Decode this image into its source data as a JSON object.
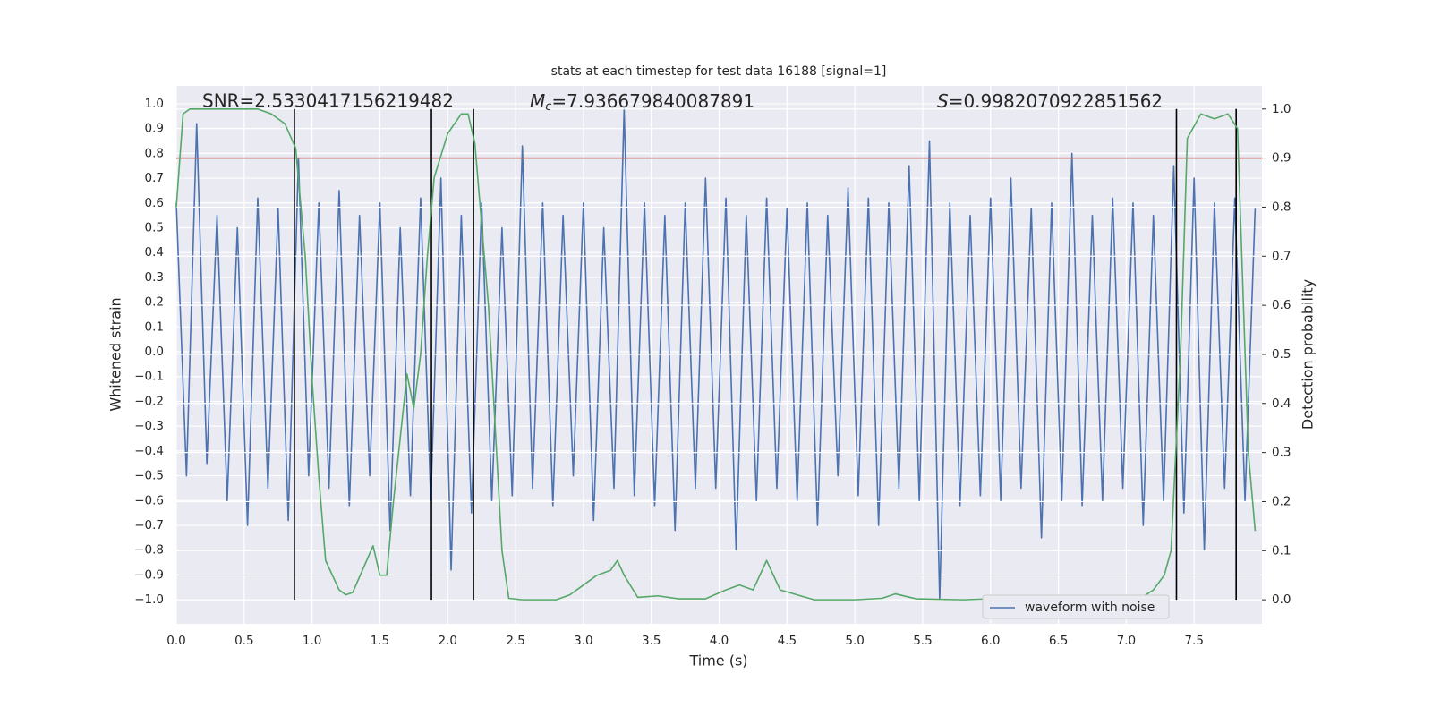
{
  "chart_data": {
    "type": "line",
    "title": "stats at each timestep for test data 16188 [signal=1]",
    "xlabel": "Time (s)",
    "ylabel": "Whitened strain",
    "y2label": "Detection probability",
    "annotations": [
      {
        "text": "SNR=2.5330417156219482"
      },
      {
        "symbol": "M",
        "subscript": "c",
        "text": "=7.936679840087891"
      },
      {
        "symbol": "S",
        "text": "=0.9982070922851562"
      }
    ],
    "xlim": [
      0,
      8.0
    ],
    "ylim": [
      -1.097,
      1.072
    ],
    "y2lim": [
      -0.049,
      1.047
    ],
    "xticks": [
      {
        "value": 0,
        "label": "0.0"
      },
      {
        "value": 0.5,
        "label": "0.5"
      },
      {
        "value": 1,
        "label": "1.0"
      },
      {
        "value": 1.5,
        "label": "1.5"
      },
      {
        "value": 2,
        "label": "2.0"
      },
      {
        "value": 2.5,
        "label": "2.5"
      },
      {
        "value": 3,
        "label": "3.0"
      },
      {
        "value": 3.5,
        "label": "3.5"
      },
      {
        "value": 4,
        "label": "4.0"
      },
      {
        "value": 4.5,
        "label": "4.5"
      },
      {
        "value": 5,
        "label": "5.0"
      },
      {
        "value": 5.5,
        "label": "5.5"
      },
      {
        "value": 6,
        "label": "6.0"
      },
      {
        "value": 6.5,
        "label": "6.5"
      },
      {
        "value": 7,
        "label": "7.0"
      },
      {
        "value": 7.5,
        "label": "7.5"
      }
    ],
    "yticks": [
      {
        "value": -1,
        "label": "−1.0"
      },
      {
        "value": -0.9,
        "label": "−0.9"
      },
      {
        "value": -0.8,
        "label": "−0.8"
      },
      {
        "value": -0.7,
        "label": "−0.7"
      },
      {
        "value": -0.6,
        "label": "−0.6"
      },
      {
        "value": -0.5,
        "label": "−0.5"
      },
      {
        "value": -0.4,
        "label": "−0.4"
      },
      {
        "value": -0.3,
        "label": "−0.3"
      },
      {
        "value": -0.2,
        "label": "−0.2"
      },
      {
        "value": -0.1,
        "label": "−0.1"
      },
      {
        "value": 0,
        "label": "0.0"
      },
      {
        "value": 0.1,
        "label": "0.1"
      },
      {
        "value": 0.2,
        "label": "0.2"
      },
      {
        "value": 0.3,
        "label": "0.3"
      },
      {
        "value": 0.4,
        "label": "0.4"
      },
      {
        "value": 0.5,
        "label": "0.5"
      },
      {
        "value": 0.6,
        "label": "0.6"
      },
      {
        "value": 0.7,
        "label": "0.7"
      },
      {
        "value": 0.8,
        "label": "0.8"
      },
      {
        "value": 0.9,
        "label": "0.9"
      },
      {
        "value": 1,
        "label": "1.0"
      }
    ],
    "y2ticks": [
      {
        "value": 0,
        "label": "0.0"
      },
      {
        "value": 0.1,
        "label": "0.1"
      },
      {
        "value": 0.2,
        "label": "0.2"
      },
      {
        "value": 0.3,
        "label": "0.3"
      },
      {
        "value": 0.4,
        "label": "0.4"
      },
      {
        "value": 0.5,
        "label": "0.5"
      },
      {
        "value": 0.6,
        "label": "0.6"
      },
      {
        "value": 0.7,
        "label": "0.7"
      },
      {
        "value": 0.8,
        "label": "0.8"
      },
      {
        "value": 0.9,
        "label": "0.9"
      },
      {
        "value": 1,
        "label": "1.0"
      }
    ],
    "grid": true,
    "legend": "lower right",
    "series": [
      {
        "name": "waveform with noise",
        "color": "#4c72b0",
        "x": [
          0,
          0.075,
          0.15,
          0.225,
          0.3,
          0.375,
          0.45,
          0.525,
          0.6,
          0.675,
          0.75,
          0.825,
          0.9,
          0.975,
          1.05,
          1.125,
          1.2,
          1.275,
          1.35,
          1.425,
          1.5,
          1.575,
          1.65,
          1.725,
          1.8,
          1.875,
          1.95,
          2.025,
          2.1,
          2.175,
          2.25,
          2.325,
          2.4,
          2.475,
          2.55,
          2.625,
          2.7,
          2.775,
          2.85,
          2.925,
          3.0,
          3.075,
          3.15,
          3.225,
          3.3,
          3.375,
          3.45,
          3.525,
          3.6,
          3.675,
          3.75,
          3.825,
          3.9,
          3.975,
          4.05,
          4.125,
          4.2,
          4.275,
          4.35,
          4.425,
          4.5,
          4.575,
          4.65,
          4.725,
          4.8,
          4.875,
          4.95,
          5.025,
          5.1,
          5.175,
          5.25,
          5.325,
          5.4,
          5.475,
          5.55,
          5.625,
          5.7,
          5.775,
          5.85,
          5.925,
          6.0,
          6.075,
          6.15,
          6.225,
          6.3,
          6.375,
          6.45,
          6.525,
          6.6,
          6.675,
          6.75,
          6.825,
          6.9,
          6.975,
          7.05,
          7.125,
          7.2,
          7.275,
          7.35,
          7.425,
          7.5,
          7.575,
          7.65,
          7.725,
          7.8,
          7.875,
          7.95
        ],
        "values": [
          0.6,
          -0.5,
          0.92,
          -0.45,
          0.55,
          -0.6,
          0.5,
          -0.7,
          0.62,
          -0.55,
          0.58,
          -0.68,
          0.78,
          -0.5,
          0.6,
          -0.55,
          0.65,
          -0.62,
          0.55,
          -0.5,
          0.6,
          -0.72,
          0.5,
          -0.58,
          0.62,
          -0.6,
          0.7,
          -0.88,
          0.55,
          -0.65,
          0.6,
          -0.6,
          0.5,
          -0.58,
          0.83,
          -0.55,
          0.6,
          -0.62,
          0.55,
          -0.5,
          0.6,
          -0.68,
          0.5,
          -0.55,
          0.98,
          -0.58,
          0.6,
          -0.62,
          0.55,
          -0.72,
          0.6,
          -0.55,
          0.7,
          -0.55,
          0.62,
          -0.8,
          0.55,
          -0.6,
          0.62,
          -0.55,
          0.58,
          -0.6,
          0.6,
          -0.7,
          0.55,
          -0.5,
          0.66,
          -0.58,
          0.62,
          -0.7,
          0.6,
          -0.55,
          0.75,
          -0.6,
          0.85,
          -1.0,
          0.6,
          -0.62,
          0.55,
          -0.58,
          0.62,
          -0.6,
          0.7,
          -0.55,
          0.58,
          -0.75,
          0.6,
          -0.6,
          0.8,
          -0.62,
          0.55,
          -0.6,
          0.62,
          -0.55,
          0.6,
          -0.7,
          0.55,
          -0.6,
          0.75,
          -0.65,
          0.7,
          -0.8,
          0.6,
          -0.55,
          0.62,
          -0.6,
          0.58
        ]
      }
    ],
    "probability": {
      "color": "#55a868",
      "axis": "y2",
      "x": [
        0,
        0.05,
        0.1,
        0.2,
        0.3,
        0.4,
        0.5,
        0.6,
        0.7,
        0.8,
        0.88,
        0.95,
        1.0,
        1.05,
        1.1,
        1.2,
        1.25,
        1.3,
        1.45,
        1.5,
        1.55,
        1.6,
        1.7,
        1.75,
        1.8,
        1.85,
        1.9,
        2.0,
        2.1,
        2.15,
        2.2,
        2.3,
        2.4,
        2.45,
        2.55,
        2.8,
        2.9,
        3.0,
        3.1,
        3.2,
        3.25,
        3.3,
        3.4,
        3.55,
        3.7,
        3.9,
        4.05,
        4.15,
        4.25,
        4.35,
        4.45,
        4.7,
        5.0,
        5.2,
        5.3,
        5.45,
        5.8,
        6.1,
        6.2,
        6.3,
        6.6,
        6.8,
        7.1,
        7.2,
        7.28,
        7.33,
        7.4,
        7.45,
        7.55,
        7.65,
        7.75,
        7.82,
        7.9,
        7.95
      ],
      "values": [
        0.8,
        0.99,
        1,
        1,
        1,
        1,
        1,
        1,
        0.99,
        0.97,
        0.92,
        0.7,
        0.45,
        0.25,
        0.08,
        0.02,
        0.01,
        0.015,
        0.11,
        0.05,
        0.05,
        0.2,
        0.46,
        0.39,
        0.5,
        0.7,
        0.86,
        0.95,
        0.99,
        0.99,
        0.93,
        0.6,
        0.1,
        0.003,
        0,
        0,
        0.01,
        0.03,
        0.05,
        0.06,
        0.08,
        0.05,
        0.005,
        0.008,
        0.002,
        0.002,
        0.02,
        0.03,
        0.02,
        0.08,
        0.02,
        0,
        0,
        0.003,
        0.012,
        0.002,
        0,
        0.003,
        0.007,
        0.002,
        0.003,
        0.001,
        0.002,
        0.02,
        0.05,
        0.1,
        0.5,
        0.94,
        0.99,
        0.98,
        0.99,
        0.96,
        0.3,
        0.14
      ]
    },
    "threshold": {
      "value": 0.9,
      "axis": "y2",
      "color": "#c44e52"
    },
    "vlines": {
      "x": [
        0.87,
        1.88,
        2.19,
        7.37,
        7.81
      ],
      "span": [
        0,
        1
      ],
      "axis": "y2",
      "color": "#000000"
    }
  }
}
